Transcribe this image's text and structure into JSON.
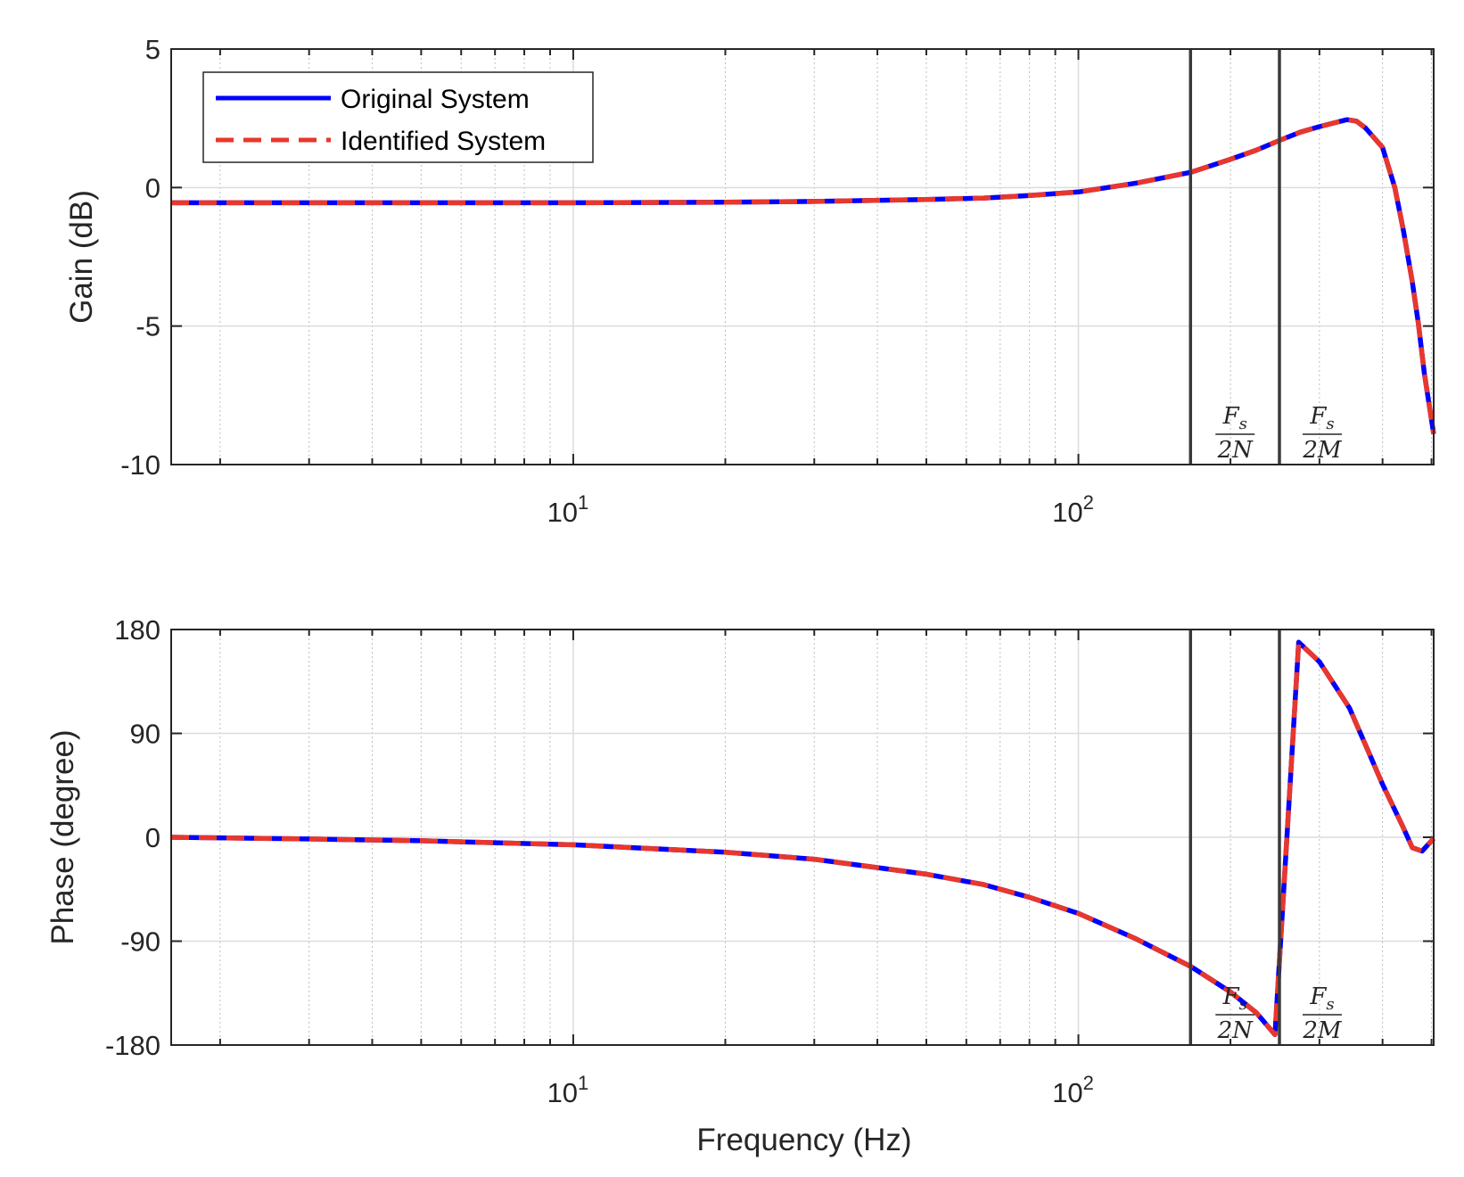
{
  "chart_data": [
    {
      "type": "line",
      "title": "",
      "xlabel": "",
      "ylabel": "Gain (dB)",
      "xscale": "log",
      "xlim": [
        1.6,
        505
      ],
      "ylim": [
        -10,
        5
      ],
      "yticks": [
        -10,
        -5,
        0,
        5
      ],
      "ytick_labels": [
        "-10",
        "-5",
        "0",
        "5"
      ],
      "xticks": [
        {
          "base": "10",
          "exp": "1",
          "value": 10
        },
        {
          "base": "10",
          "exp": "2",
          "value": 100
        }
      ],
      "grid": true,
      "legend": {
        "placement": "top-left",
        "entries": [
          "Original System",
          "Identified System"
        ]
      },
      "vlines": [
        {
          "x": 166.7,
          "num": "F",
          "num_sub": "s",
          "den": "2N"
        },
        {
          "x": 250,
          "num": "F",
          "num_sub": "s",
          "den": "2M"
        }
      ],
      "x": [
        1.6,
        3,
        5,
        10,
        20,
        30,
        50,
        65,
        80,
        100,
        130,
        167,
        200,
        225,
        250,
        275,
        300,
        340,
        355,
        370,
        400,
        423,
        440,
        458,
        471,
        484,
        505
      ],
      "series": [
        {
          "name": "Original System",
          "style": "solid",
          "color": "#0000ff",
          "values": [
            -0.55,
            -0.55,
            -0.55,
            -0.55,
            -0.53,
            -0.5,
            -0.43,
            -0.38,
            -0.29,
            -0.16,
            0.16,
            0.55,
            1.02,
            1.35,
            1.7,
            2.0,
            2.2,
            2.45,
            2.4,
            2.15,
            1.45,
            0.0,
            -1.56,
            -3.4,
            -4.9,
            -6.7,
            -8.9
          ]
        },
        {
          "name": "Identified System",
          "style": "dashed",
          "color": "#e8372c",
          "values": [
            -0.55,
            -0.55,
            -0.55,
            -0.55,
            -0.53,
            -0.5,
            -0.43,
            -0.38,
            -0.29,
            -0.16,
            0.16,
            0.55,
            1.02,
            1.35,
            1.7,
            2.0,
            2.2,
            2.45,
            2.4,
            2.15,
            1.45,
            0.0,
            -1.56,
            -3.4,
            -4.9,
            -6.7,
            -8.9
          ]
        }
      ]
    },
    {
      "type": "line",
      "title": "",
      "xlabel": "Frequency (Hz)",
      "ylabel": "Phase (degree)",
      "xscale": "log",
      "xlim": [
        1.6,
        505
      ],
      "ylim": [
        -180,
        180
      ],
      "yticks": [
        -180,
        -90,
        0,
        90,
        180
      ],
      "ytick_labels": [
        "-180",
        "-90",
        "0",
        "90",
        "180"
      ],
      "xticks": [
        {
          "base": "10",
          "exp": "1",
          "value": 10
        },
        {
          "base": "10",
          "exp": "2",
          "value": 100
        }
      ],
      "grid": true,
      "vlines": [
        {
          "x": 166.7,
          "num": "F",
          "num_sub": "s",
          "den": "2N"
        },
        {
          "x": 250,
          "num": "F",
          "num_sub": "s",
          "den": "2M"
        }
      ],
      "x": [
        1.6,
        3,
        5,
        10,
        20,
        30,
        50,
        65,
        80,
        100,
        130,
        167,
        200,
        225,
        245,
        273,
        300,
        344,
        370,
        400,
        440,
        458,
        479,
        505
      ],
      "series": [
        {
          "name": "Original System",
          "style": "solid",
          "color": "#0000ff",
          "values": [
            0,
            -1.5,
            -3,
            -6.5,
            -13,
            -19,
            -32,
            -41,
            -52,
            -66,
            -88,
            -112,
            -134,
            -152,
            -171,
            169,
            152,
            112,
            80,
            46,
            8,
            -9,
            -12,
            -1
          ]
        },
        {
          "name": "Identified System",
          "style": "dashed",
          "color": "#e8372c",
          "values": [
            0,
            -1.5,
            -3,
            -6.5,
            -13,
            -19,
            -32,
            -41,
            -52,
            -66,
            -88,
            -112,
            -134,
            -152,
            -171,
            169,
            152,
            112,
            80,
            46,
            8,
            -9,
            -12,
            -1
          ]
        }
      ]
    }
  ]
}
